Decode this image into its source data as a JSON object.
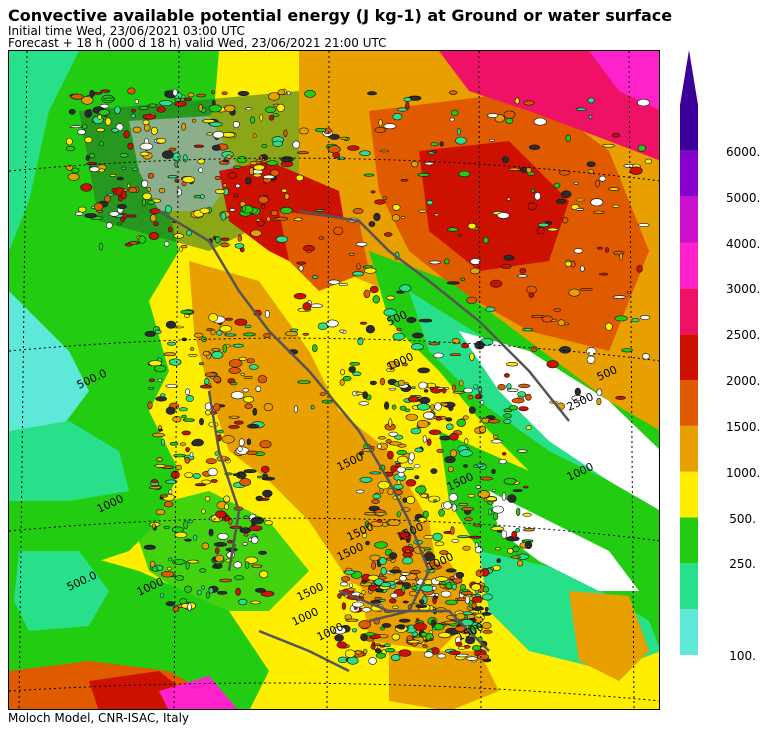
{
  "header": {
    "title": "Convective available potential energy (J kg-1) at Ground or water surface",
    "initial_time": "Initial time  Wed, 23/06/2021  03:00 UTC",
    "forecast": "Forecast  +  18 h  (000 d 18 h)  valid Wed, 23/06/2021 21:00 UTC"
  },
  "footer": "Moloch Model, CNR-ISAC, Italy",
  "legend": {
    "levels": [
      "100.",
      "250.",
      "500.",
      "1000.",
      "1500.",
      "2000.",
      "2500.",
      "3000.",
      "4000.",
      "5000.",
      "6000."
    ],
    "colors": [
      "#5ee8d8",
      "#28e08a",
      "#22cc11",
      "#ffee00",
      "#e8a000",
      "#e05a00",
      "#cc1100",
      "#ee1166",
      "#ff22cc",
      "#cc11cc",
      "#8a00cc",
      "#3a0099"
    ]
  },
  "map": {
    "contour_labels": [
      "500.0",
      "1000",
      "1500",
      "500.0",
      "1000",
      "1500",
      "1500",
      "1000",
      "500",
      "1000",
      "1500",
      "1500",
      "1500",
      "1000",
      "1500",
      "2500",
      "1000",
      "500",
      "1000"
    ],
    "bg_colors": {
      "land_dark": "#2b2b2b",
      "sea": "#ffffff"
    }
  }
}
